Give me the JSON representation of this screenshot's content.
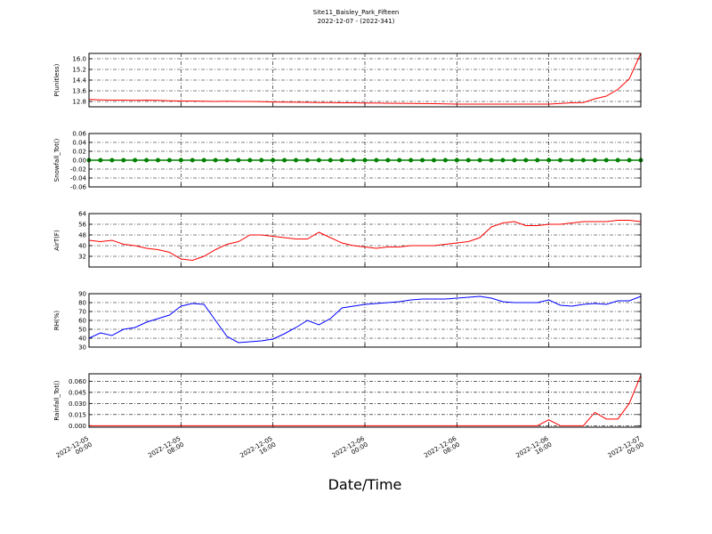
{
  "title": "Site11_Baisley_Park_Fifteen",
  "subtitle": "2022-12-07 - (2022-341)",
  "xlabel": "Date/Time",
  "x": [
    "2022-12-05 00:00",
    "2022-12-05 01:00",
    "2022-12-05 02:00",
    "2022-12-05 03:00",
    "2022-12-05 04:00",
    "2022-12-05 05:00",
    "2022-12-05 06:00",
    "2022-12-05 07:00",
    "2022-12-05 08:00",
    "2022-12-05 09:00",
    "2022-12-05 10:00",
    "2022-12-05 11:00",
    "2022-12-05 12:00",
    "2022-12-05 13:00",
    "2022-12-05 14:00",
    "2022-12-05 15:00",
    "2022-12-05 16:00",
    "2022-12-05 17:00",
    "2022-12-05 18:00",
    "2022-12-05 19:00",
    "2022-12-05 20:00",
    "2022-12-05 21:00",
    "2022-12-05 22:00",
    "2022-12-05 23:00",
    "2022-12-06 00:00",
    "2022-12-06 01:00",
    "2022-12-06 02:00",
    "2022-12-06 03:00",
    "2022-12-06 04:00",
    "2022-12-06 05:00",
    "2022-12-06 06:00",
    "2022-12-06 07:00",
    "2022-12-06 08:00",
    "2022-12-06 09:00",
    "2022-12-06 10:00",
    "2022-12-06 11:00",
    "2022-12-06 12:00",
    "2022-12-06 13:00",
    "2022-12-06 14:00",
    "2022-12-06 15:00",
    "2022-12-06 16:00",
    "2022-12-06 17:00",
    "2022-12-06 18:00",
    "2022-12-06 19:00",
    "2022-12-06 20:00",
    "2022-12-06 21:00",
    "2022-12-06 22:00",
    "2022-12-06 23:00",
    "2022-12-07 00:00"
  ],
  "xlim": [
    "2022-12-05 00:00",
    "2022-12-07 00:00"
  ],
  "xticks": [
    {
      "value": "2022-12-05 00:00",
      "label": "2022-12-05\n00:00"
    },
    {
      "value": "2022-12-05 08:00",
      "label": "2022-12-05\n08:00"
    },
    {
      "value": "2022-12-05 16:00",
      "label": "2022-12-05\n16:00"
    },
    {
      "value": "2022-12-06 00:00",
      "label": "2022-12-06\n00:00"
    },
    {
      "value": "2022-12-06 08:00",
      "label": "2022-12-06\n08:00"
    },
    {
      "value": "2022-12-06 16:00",
      "label": "2022-12-06\n16:00"
    },
    {
      "value": "2022-12-07 00:00",
      "label": "2022-12-07\n00:00"
    }
  ],
  "grid": true,
  "chart_data": [
    {
      "type": "line",
      "ylabel": "P(unitless)",
      "ylim": [
        12.4,
        16.4
      ],
      "yticks": [
        {
          "value": 12.8,
          "label": "12.8"
        },
        {
          "value": 13.6,
          "label": "13.6"
        },
        {
          "value": 14.4,
          "label": "14.4"
        },
        {
          "value": 15.2,
          "label": "15.2"
        },
        {
          "value": 16,
          "label": "16.0"
        }
      ],
      "series": [
        {
          "color": "#ff0000",
          "values": [
            12.95,
            12.92,
            12.9,
            12.9,
            12.88,
            12.9,
            12.88,
            12.85,
            12.83,
            12.83,
            12.82,
            12.8,
            12.82,
            12.8,
            12.8,
            12.78,
            12.76,
            12.75,
            12.74,
            12.73,
            12.72,
            12.72,
            12.7,
            12.7,
            12.68,
            12.68,
            12.67,
            12.66,
            12.65,
            12.64,
            12.63,
            12.62,
            12.6,
            12.6,
            12.6,
            12.6,
            12.6,
            12.6,
            12.6,
            12.6,
            12.6,
            12.65,
            12.7,
            12.72,
            13.0,
            13.2,
            13.7,
            14.5,
            16.4
          ]
        }
      ]
    },
    {
      "type": "line",
      "ylabel": "Snowfall_Tot()",
      "ylim": [
        -0.06,
        0.06
      ],
      "yticks": [
        -0.06,
        -0.04,
        -0.02,
        {
          "value": 0,
          "label": "0.00"
        },
        0.02,
        0.04,
        0.06
      ],
      "series": [
        {
          "color": "#008000",
          "markers": true,
          "values": [
            0,
            0,
            0,
            0,
            0,
            0,
            0,
            0,
            0,
            0,
            0,
            0,
            0,
            0,
            0,
            0,
            0,
            0,
            0,
            0,
            0,
            0,
            0,
            0,
            0,
            0,
            0,
            0,
            0,
            0,
            0,
            0,
            0,
            0,
            0,
            0,
            0,
            0,
            0,
            0,
            0,
            0,
            0,
            0,
            0,
            0,
            0,
            0,
            0
          ]
        }
      ]
    },
    {
      "type": "line",
      "ylabel": "AirT(F)",
      "ylim": [
        24,
        64
      ],
      "yticks": [
        32,
        40,
        48,
        56,
        64
      ],
      "series": [
        {
          "color": "#ff0000",
          "values": [
            44,
            43,
            44,
            41,
            40,
            38,
            37,
            35,
            30,
            29,
            32,
            37,
            41,
            43,
            48,
            48,
            47,
            46,
            45,
            45,
            50,
            46,
            42,
            40,
            39,
            38,
            39,
            39,
            40,
            40,
            40,
            41,
            42,
            43,
            46,
            54,
            57,
            58,
            55,
            55,
            56,
            56,
            57,
            58,
            58,
            58,
            59,
            59,
            58
          ]
        }
      ]
    },
    {
      "type": "line",
      "ylabel": "RH(%)",
      "ylim": [
        30,
        90
      ],
      "yticks": [
        30,
        40,
        50,
        60,
        70,
        80,
        90
      ],
      "series": [
        {
          "color": "#0000ff",
          "values": [
            40,
            46,
            43,
            50,
            52,
            58,
            62,
            66,
            76,
            79,
            78,
            60,
            42,
            35,
            36,
            37,
            39,
            45,
            52,
            60,
            55,
            62,
            74,
            76,
            78,
            79,
            80,
            81,
            83,
            84,
            84,
            84,
            85,
            86,
            87,
            85,
            81,
            80,
            80,
            80,
            83,
            77,
            76,
            78,
            79,
            78,
            82,
            82,
            87
          ]
        }
      ]
    },
    {
      "type": "line",
      "ylabel": "Rainfall_Tot()",
      "ylim": [
        -0.002,
        0.07
      ],
      "yticks": [
        {
          "value": 0,
          "label": "0.000"
        },
        0.015,
        {
          "value": 0.03,
          "label": "0.030"
        },
        0.045,
        {
          "value": 0.06,
          "label": "0.060"
        }
      ],
      "series": [
        {
          "color": "#ff0000",
          "values": [
            0,
            0,
            0,
            0,
            0,
            0,
            0,
            0,
            0,
            0,
            0,
            0,
            0,
            0,
            0,
            0,
            0,
            0,
            0,
            0,
            0,
            0,
            0,
            0,
            0,
            0,
            0,
            0,
            0,
            0,
            0,
            0,
            0,
            0,
            0,
            0,
            0,
            0,
            0,
            0,
            0.008,
            0,
            0,
            0,
            0.018,
            0.009,
            0.009,
            0.03,
            0.068
          ]
        }
      ]
    }
  ]
}
